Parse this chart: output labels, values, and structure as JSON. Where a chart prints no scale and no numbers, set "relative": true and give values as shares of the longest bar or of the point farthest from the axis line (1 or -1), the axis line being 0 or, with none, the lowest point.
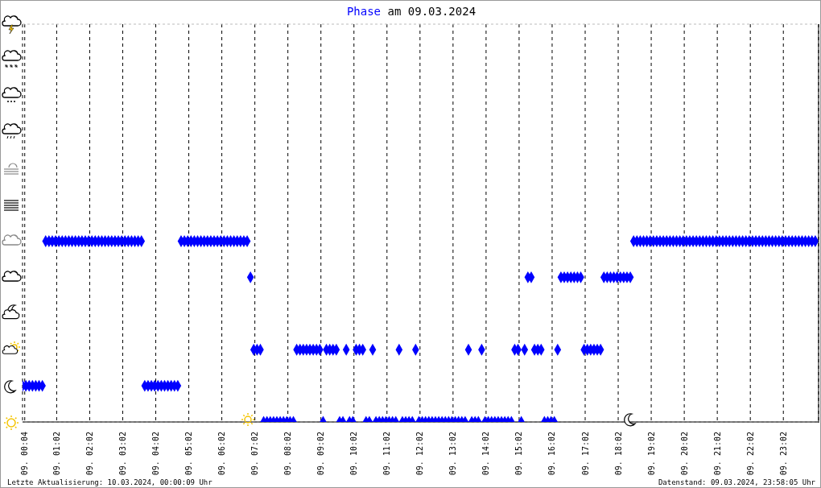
{
  "chart_data": {
    "type": "scatter",
    "title": "Phase am 09.03.2024",
    "relative": true,
    "marker": "diamond",
    "grid": true,
    "tick_labels": "x",
    "xlim": [
      "2024-03-09T00:00",
      "2024-03-10T00:06"
    ],
    "xticks": [
      {
        "value": "2024-03-09T00:04",
        "label": "09. 00:04"
      },
      {
        "value": "2024-03-09T01:02",
        "label": "09. 01:02"
      },
      {
        "value": "2024-03-09T02:02",
        "label": "09. 02:02"
      },
      {
        "value": "2024-03-09T03:02",
        "label": "09. 03:02"
      },
      {
        "value": "2024-03-09T04:02",
        "label": "09. 04:02"
      },
      {
        "value": "2024-03-09T05:02",
        "label": "09. 05:02"
      },
      {
        "value": "2024-03-09T06:02",
        "label": "09. 06:02"
      },
      {
        "value": "2024-03-09T07:02",
        "label": "09. 07:02"
      },
      {
        "value": "2024-03-09T08:02",
        "label": "09. 08:02"
      },
      {
        "value": "2024-03-09T09:02",
        "label": "09. 09:02"
      },
      {
        "value": "2024-03-09T10:02",
        "label": "09. 10:02"
      },
      {
        "value": "2024-03-09T11:02",
        "label": "09. 11:02"
      },
      {
        "value": "2024-03-09T12:02",
        "label": "09. 12:02"
      },
      {
        "value": "2024-03-09T13:02",
        "label": "09. 13:02"
      },
      {
        "value": "2024-03-09T14:02",
        "label": "09. 14:02"
      },
      {
        "value": "2024-03-09T15:02",
        "label": "09. 15:02"
      },
      {
        "value": "2024-03-09T16:02",
        "label": "09. 16:02"
      },
      {
        "value": "2024-03-09T17:02",
        "label": "09. 17:02"
      },
      {
        "value": "2024-03-09T18:02",
        "label": "09. 18:02"
      },
      {
        "value": "2024-03-09T19:02",
        "label": "09. 19:02"
      },
      {
        "value": "2024-03-09T20:02",
        "label": "09. 20:02"
      },
      {
        "value": "2024-03-09T21:02",
        "label": "09. 21:02"
      },
      {
        "value": "2024-03-09T22:02",
        "label": "09. 22:02"
      },
      {
        "value": "2024-03-09T23:02",
        "label": "09. 23:02"
      }
    ],
    "annotations": [
      "Letzte Aktualisierung: 10.03.2024, 00:00:09 Uhr",
      "Datenstand: 09.03.2024, 23:58:05 Uhr"
    ],
    "series": [
      {
        "color": "#0000ff",
        "x": [
          "2024-03-09T00:00",
          "2024-03-09T00:06",
          "2024-03-09T00:12",
          "2024-03-09T00:18",
          "2024-03-09T00:24",
          "2024-03-09T00:30",
          "2024-03-09T00:36",
          "2024-03-09T00:42",
          "2024-03-09T00:48",
          "2024-03-09T00:54",
          "2024-03-09T01:00",
          "2024-03-09T01:06",
          "2024-03-09T01:12",
          "2024-03-09T01:18",
          "2024-03-09T01:24",
          "2024-03-09T01:30",
          "2024-03-09T01:36",
          "2024-03-09T01:42",
          "2024-03-09T01:48",
          "2024-03-09T01:54",
          "2024-03-09T02:00",
          "2024-03-09T02:06",
          "2024-03-09T02:12",
          "2024-03-09T02:18",
          "2024-03-09T02:24",
          "2024-03-09T02:30",
          "2024-03-09T02:36",
          "2024-03-09T02:42",
          "2024-03-09T02:48",
          "2024-03-09T02:54",
          "2024-03-09T03:00",
          "2024-03-09T03:06",
          "2024-03-09T03:12",
          "2024-03-09T03:18",
          "2024-03-09T03:24",
          "2024-03-09T03:30",
          "2024-03-09T03:36",
          "2024-03-09T03:42",
          "2024-03-09T03:48",
          "2024-03-09T03:54",
          "2024-03-09T04:00",
          "2024-03-09T04:06",
          "2024-03-09T04:12",
          "2024-03-09T04:18",
          "2024-03-09T04:24",
          "2024-03-09T04:30",
          "2024-03-09T04:36",
          "2024-03-09T04:42",
          "2024-03-09T04:48",
          "2024-03-09T04:54",
          "2024-03-09T05:00",
          "2024-03-09T05:06",
          "2024-03-09T05:12",
          "2024-03-09T05:18",
          "2024-03-09T05:24",
          "2024-03-09T05:30",
          "2024-03-09T05:36",
          "2024-03-09T05:42",
          "2024-03-09T05:48",
          "2024-03-09T05:54",
          "2024-03-09T06:00",
          "2024-03-09T06:06",
          "2024-03-09T06:12",
          "2024-03-09T06:18",
          "2024-03-09T06:24",
          "2024-03-09T06:30",
          "2024-03-09T06:36",
          "2024-03-09T06:42",
          "2024-03-09T06:48",
          "2024-03-09T06:54",
          "2024-03-09T07:00",
          "2024-03-09T07:06",
          "2024-03-09T07:12",
          "2024-03-09T07:18",
          "2024-03-09T07:24",
          "2024-03-09T07:30",
          "2024-03-09T07:36",
          "2024-03-09T07:42",
          "2024-03-09T07:48",
          "2024-03-09T07:54",
          "2024-03-09T08:00",
          "2024-03-09T08:06",
          "2024-03-09T08:12",
          "2024-03-09T08:18",
          "2024-03-09T08:24",
          "2024-03-09T08:30",
          "2024-03-09T08:36",
          "2024-03-09T08:42",
          "2024-03-09T08:48",
          "2024-03-09T08:54",
          "2024-03-09T09:00",
          "2024-03-09T09:06",
          "2024-03-09T09:12",
          "2024-03-09T09:18",
          "2024-03-09T09:24",
          "2024-03-09T09:30",
          "2024-03-09T09:36",
          "2024-03-09T09:42",
          "2024-03-09T09:48",
          "2024-03-09T09:54",
          "2024-03-09T10:00",
          "2024-03-09T10:06",
          "2024-03-09T10:12",
          "2024-03-09T10:18",
          "2024-03-09T10:24",
          "2024-03-09T10:30",
          "2024-03-09T10:36",
          "2024-03-09T10:42",
          "2024-03-09T10:48",
          "2024-03-09T10:54",
          "2024-03-09T11:00",
          "2024-03-09T11:06",
          "2024-03-09T11:12",
          "2024-03-09T11:18",
          "2024-03-09T11:24",
          "2024-03-09T11:30",
          "2024-03-09T11:36",
          "2024-03-09T11:42",
          "2024-03-09T11:48",
          "2024-03-09T11:54",
          "2024-03-09T12:00",
          "2024-03-09T12:06",
          "2024-03-09T12:12",
          "2024-03-09T12:18",
          "2024-03-09T12:24",
          "2024-03-09T12:30",
          "2024-03-09T12:36",
          "2024-03-09T12:42",
          "2024-03-09T12:48",
          "2024-03-09T12:54",
          "2024-03-09T13:00",
          "2024-03-09T13:06",
          "2024-03-09T13:12",
          "2024-03-09T13:18",
          "2024-03-09T13:24",
          "2024-03-09T13:30",
          "2024-03-09T13:36",
          "2024-03-09T13:42",
          "2024-03-09T13:48",
          "2024-03-09T13:54",
          "2024-03-09T14:00",
          "2024-03-09T14:06",
          "2024-03-09T14:12",
          "2024-03-09T14:18",
          "2024-03-09T14:24",
          "2024-03-09T14:30",
          "2024-03-09T14:36",
          "2024-03-09T14:42",
          "2024-03-09T14:48",
          "2024-03-09T14:54",
          "2024-03-09T15:00",
          "2024-03-09T15:06",
          "2024-03-09T15:12",
          "2024-03-09T15:18",
          "2024-03-09T15:24",
          "2024-03-09T15:30",
          "2024-03-09T15:36",
          "2024-03-09T15:42",
          "2024-03-09T15:48",
          "2024-03-09T15:54",
          "2024-03-09T16:00",
          "2024-03-09T16:06",
          "2024-03-09T16:12",
          "2024-03-09T16:18",
          "2024-03-09T16:24",
          "2024-03-09T16:30",
          "2024-03-09T16:36",
          "2024-03-09T16:42",
          "2024-03-09T16:48",
          "2024-03-09T16:54",
          "2024-03-09T17:00",
          "2024-03-09T17:06",
          "2024-03-09T17:12",
          "2024-03-09T17:18",
          "2024-03-09T17:24",
          "2024-03-09T17:30",
          "2024-03-09T17:36",
          "2024-03-09T17:42",
          "2024-03-09T17:48",
          "2024-03-09T17:54",
          "2024-03-09T18:00",
          "2024-03-09T18:06",
          "2024-03-09T18:12",
          "2024-03-09T18:18",
          "2024-03-09T18:24",
          "2024-03-09T18:30",
          "2024-03-09T18:36",
          "2024-03-09T18:42",
          "2024-03-09T18:48",
          "2024-03-09T18:54",
          "2024-03-09T19:00",
          "2024-03-09T19:06",
          "2024-03-09T19:12",
          "2024-03-09T19:18",
          "2024-03-09T19:24",
          "2024-03-09T19:30",
          "2024-03-09T19:36",
          "2024-03-09T19:42",
          "2024-03-09T19:48",
          "2024-03-09T19:54",
          "2024-03-09T20:00",
          "2024-03-09T20:06",
          "2024-03-09T20:12",
          "2024-03-09T20:18",
          "2024-03-09T20:24",
          "2024-03-09T20:30",
          "2024-03-09T20:36",
          "2024-03-09T20:42",
          "2024-03-09T20:48",
          "2024-03-09T20:54",
          "2024-03-09T21:00",
          "2024-03-09T21:06",
          "2024-03-09T21:12",
          "2024-03-09T21:18",
          "2024-03-09T21:24",
          "2024-03-09T21:30",
          "2024-03-09T21:36",
          "2024-03-09T21:42",
          "2024-03-09T21:48",
          "2024-03-09T21:54",
          "2024-03-09T22:00",
          "2024-03-09T22:06",
          "2024-03-09T22:12",
          "2024-03-09T22:18",
          "2024-03-09T22:24",
          "2024-03-09T22:30",
          "2024-03-09T22:36",
          "2024-03-09T22:42",
          "2024-03-09T22:48",
          "2024-03-09T22:54",
          "2024-03-09T23:00",
          "2024-03-09T23:06",
          "2024-03-09T23:12",
          "2024-03-09T23:18",
          "2024-03-09T23:24",
          "2024-03-09T23:30",
          "2024-03-09T23:36",
          "2024-03-09T23:42",
          "2024-03-09T23:48",
          "2024-03-09T23:54",
          "2024-03-10T00:00"
        ],
        "values": [
          0.2,
          0.2,
          0.2,
          0.2,
          0.2,
          0.2,
          0.2,
          1,
          1,
          1,
          1,
          1,
          1,
          1,
          1,
          1,
          1,
          1,
          1,
          1,
          1,
          1,
          1,
          1,
          1,
          1,
          1,
          1,
          1,
          1,
          1,
          1,
          1,
          1,
          1,
          1,
          1,
          0.2,
          0.2,
          0.2,
          0.2,
          0.2,
          0.2,
          0.2,
          0.2,
          0.2,
          0.2,
          0.2,
          1,
          1,
          1,
          1,
          1,
          1,
          1,
          1,
          1,
          1,
          1,
          1,
          1,
          1,
          1,
          1,
          1,
          1,
          1,
          1,
          1,
          0.8,
          0.4,
          0.4,
          0.4,
          0,
          0,
          0,
          0,
          0,
          0,
          0,
          0,
          0,
          0,
          0.4,
          0.4,
          0.4,
          0.4,
          0.4,
          0.4,
          0.4,
          0.4,
          0,
          0.4,
          0.4,
          0.4,
          0.4,
          0,
          0,
          0.4,
          0,
          0,
          0.4,
          0.4,
          0.4,
          0,
          0,
          0.4,
          0,
          0,
          0,
          0,
          0,
          0,
          0,
          0.4,
          0,
          0,
          0,
          0,
          0.4,
          0,
          0,
          0,
          0,
          0,
          0,
          0,
          0,
          0,
          0,
          0,
          0,
          0,
          0,
          0,
          0.4,
          0,
          0,
          0,
          0.4,
          0,
          0,
          0,
          0,
          0,
          0,
          0,
          0,
          0,
          0.4,
          0.4,
          0,
          0.4,
          0.8,
          0.8,
          0.4,
          0.4,
          0.4,
          0,
          0,
          0,
          0,
          0.4,
          0.8,
          0.8,
          0.8,
          0.8,
          0.8,
          0.8,
          0.8,
          0.4,
          0.4,
          0.4,
          0.4,
          0.4,
          0.4,
          0.8,
          0.8,
          0.8,
          0.8,
          0.8,
          0.8,
          0.8,
          0.8,
          0.8,
          1,
          1,
          1,
          1,
          1,
          1,
          1,
          1,
          1,
          1,
          1,
          1,
          1,
          1,
          1,
          1,
          1,
          1,
          1,
          1,
          1,
          1,
          1,
          1,
          1,
          1,
          1,
          1,
          1,
          1,
          1,
          1,
          1,
          1,
          1,
          1,
          1,
          1,
          1,
          1,
          1,
          1,
          1,
          1,
          1,
          1,
          1,
          1,
          1,
          1,
          1,
          1,
          1,
          1,
          1,
          1
        ]
      }
    ]
  }
}
